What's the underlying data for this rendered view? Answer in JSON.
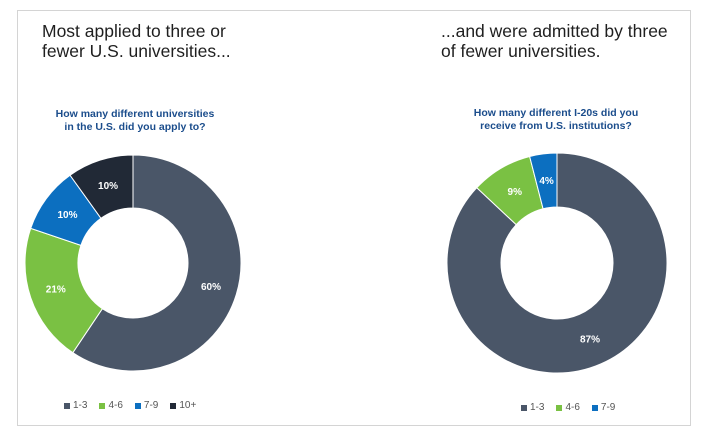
{
  "colors": {
    "1-3": "#4a5668",
    "4-6": "#7ac143",
    "7-9": "#0c6fc0",
    "10+": "#212936"
  },
  "left": {
    "headline": [
      "Most applied to three or",
      "fewer U.S. universities..."
    ],
    "question": [
      "How many different universities",
      "in the U.S. did you apply to?"
    ]
  },
  "right": {
    "headline": [
      "...and were admitted by three",
      "of fewer universities."
    ],
    "question": [
      "How many different I-20s did you",
      "receive from U.S. institutions?"
    ]
  },
  "chart_data": [
    {
      "type": "pie",
      "title": "How many different universities in the U.S. did you apply to?",
      "categories": [
        "1-3",
        "4-6",
        "7-9",
        "10+"
      ],
      "values": [
        60,
        21,
        10,
        10
      ],
      "labels": [
        "60%",
        "21%",
        "10%",
        "10%"
      ],
      "legend": [
        "1-3",
        "4-6",
        "7-9",
        "10+"
      ],
      "legend_position": "bottom"
    },
    {
      "type": "pie",
      "title": "How many different I-20s did you receive from U.S. institutions?",
      "categories": [
        "1-3",
        "4-6",
        "7-9"
      ],
      "values": [
        87,
        9,
        4
      ],
      "labels": [
        "87%",
        "9%",
        "4%"
      ],
      "legend": [
        "1-3",
        "4-6",
        "7-9"
      ],
      "legend_position": "bottom"
    }
  ]
}
